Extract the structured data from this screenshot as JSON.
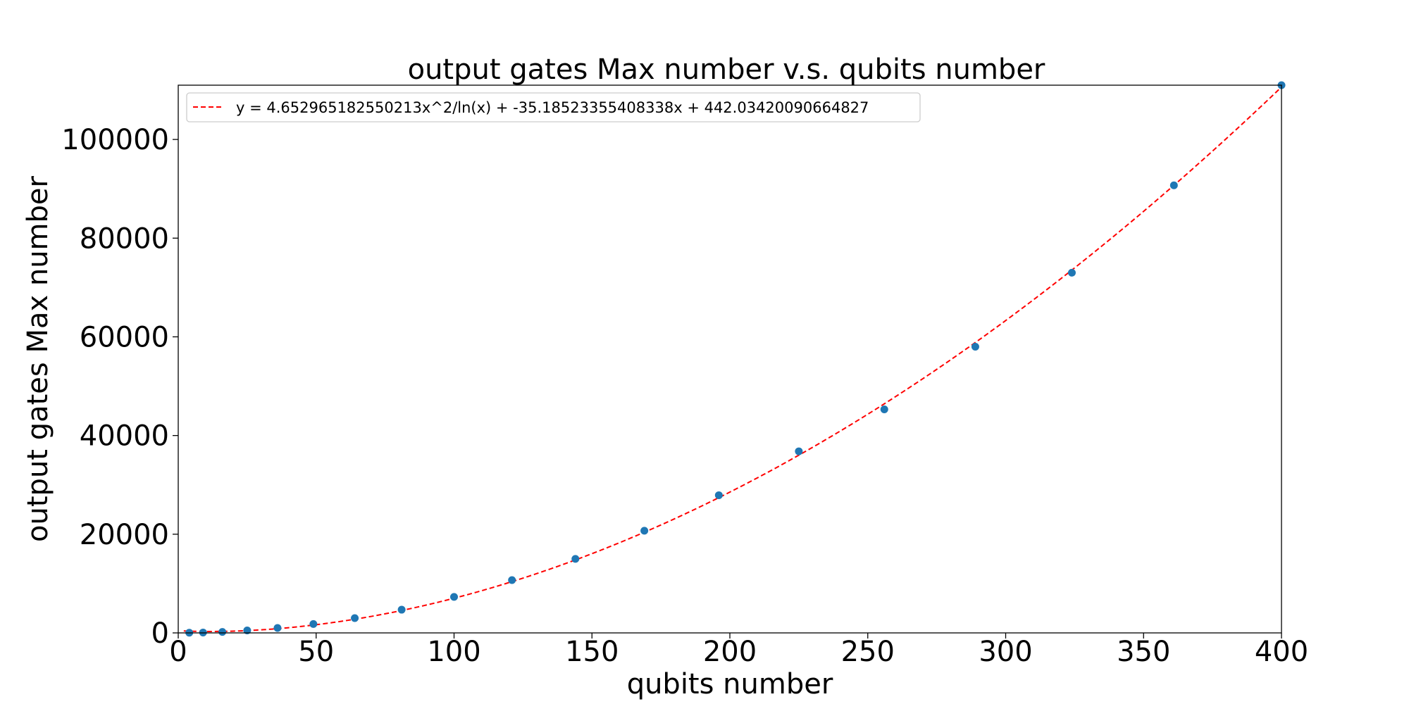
{
  "chart_data": {
    "type": "scatter",
    "title": "output gates Max number v.s. qubits number",
    "xlabel": "qubits number",
    "ylabel": "output gates Max number",
    "xlim": [
      0,
      400
    ],
    "ylim": [
      0,
      111000
    ],
    "xticks": [
      0,
      50,
      100,
      150,
      200,
      250,
      300,
      350,
      400
    ],
    "yticks": [
      0,
      20000,
      40000,
      60000,
      80000,
      100000
    ],
    "grid": false,
    "legend_position": "top-left",
    "series": [
      {
        "kind": "scatter",
        "color": "#1f77b4",
        "x": [
          4,
          9,
          16,
          25,
          36,
          49,
          64,
          81,
          100,
          121,
          144,
          169,
          196,
          225,
          256,
          289,
          324,
          361,
          400
        ],
        "y": [
          30,
          80,
          200,
          500,
          1000,
          1800,
          3000,
          4700,
          7300,
          10700,
          15000,
          20700,
          27900,
          36800,
          45300,
          58000,
          73000,
          90700,
          111000
        ]
      },
      {
        "kind": "line",
        "name": "y = 4.652965182550213x^2/ln(x) + -35.18523355408338x + 442.03420090664827",
        "color": "#ff0000",
        "dashed": true,
        "coefficients": {
          "a": 4.652965182550213,
          "b": -35.18523355408338,
          "c": 442.03420090664827
        }
      }
    ]
  }
}
